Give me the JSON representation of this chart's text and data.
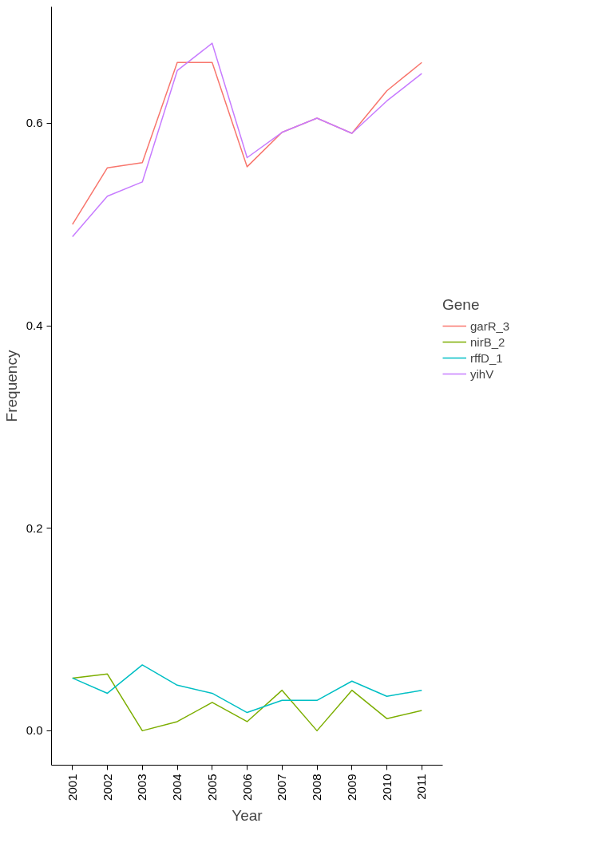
{
  "chart_data": {
    "type": "line",
    "xlabel": "Year",
    "ylabel": "Frequency",
    "legend_title": "Gene",
    "legend": "right",
    "grid": false,
    "x": [
      2001,
      2002,
      2003,
      2004,
      2005,
      2006,
      2007,
      2008,
      2009,
      2010,
      2011
    ],
    "xlim": [
      2000.4,
      2011.6
    ],
    "xticks": [
      2001,
      2002,
      2003,
      2004,
      2005,
      2006,
      2007,
      2008,
      2009,
      2010,
      2011
    ],
    "ylim": [
      -0.034,
      0.715
    ],
    "yticks": [
      {
        "value": 0,
        "label": "0.0"
      },
      0.2,
      0.4,
      0.6
    ],
    "series": [
      {
        "name": "garR_3",
        "color": "#f8766d",
        "values": [
          0.5,
          0.556,
          0.561,
          0.66,
          0.66,
          0.557,
          0.591,
          0.605,
          0.59,
          0.632,
          0.66
        ]
      },
      {
        "name": "nirB_2",
        "color": "#7cae00",
        "values": [
          0.052,
          0.056,
          0.0,
          0.009,
          0.028,
          0.009,
          0.04,
          0.0,
          0.04,
          0.012,
          0.02
        ]
      },
      {
        "name": "rffD_1",
        "color": "#00bfc4",
        "values": [
          0.052,
          0.037,
          0.065,
          0.045,
          0.037,
          0.018,
          0.03,
          0.03,
          0.049,
          0.034,
          0.04
        ]
      },
      {
        "name": "yihV",
        "color": "#c77cff",
        "values": [
          0.488,
          0.528,
          0.542,
          0.652,
          0.679,
          0.566,
          0.591,
          0.605,
          0.59,
          0.622,
          0.649
        ]
      }
    ]
  }
}
